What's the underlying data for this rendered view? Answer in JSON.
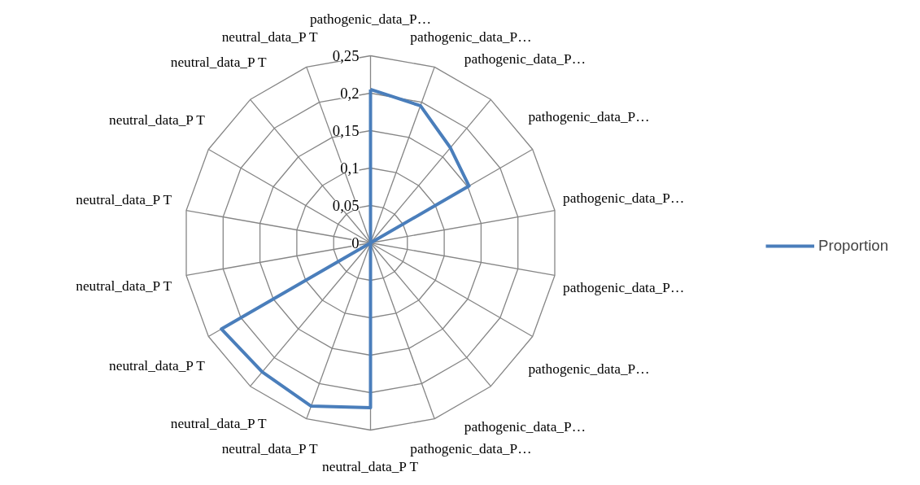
{
  "chart_data": {
    "type": "radar",
    "categories": [
      "pathogenic_data_P…",
      "pathogenic_data_P…",
      "pathogenic_data_P…",
      "pathogenic_data_P…",
      "pathogenic_data_P…",
      "pathogenic_data_P…",
      "pathogenic_data_P…",
      "pathogenic_data_P…",
      "pathogenic_data_P…",
      "neutral_data_P T",
      "neutral_data_P T",
      "neutral_data_P T",
      "neutral_data_P T",
      "neutral_data_P T",
      "neutral_data_P T",
      "neutral_data_P T",
      "neutral_data_P T",
      "neutral_data_P T"
    ],
    "series": [
      {
        "name": "Proportion",
        "color": "#4a7ebb",
        "values": [
          0.205,
          0.195,
          0.166,
          0.152,
          0,
          0,
          0,
          0,
          0,
          0.22,
          0.232,
          0.225,
          0.23,
          0,
          0,
          0,
          0,
          0
        ]
      }
    ],
    "ylim": [
      0,
      0.25
    ],
    "yticks": [
      {
        "value": 0,
        "label": "0"
      },
      {
        "value": 0.05,
        "label": "0,05"
      },
      {
        "value": 0.1,
        "label": "0,1"
      },
      {
        "value": 0.15,
        "label": "0,15"
      },
      {
        "value": 0.2,
        "label": "0,2"
      },
      {
        "value": 0.25,
        "label": "0,25"
      }
    ],
    "legend": "right"
  }
}
